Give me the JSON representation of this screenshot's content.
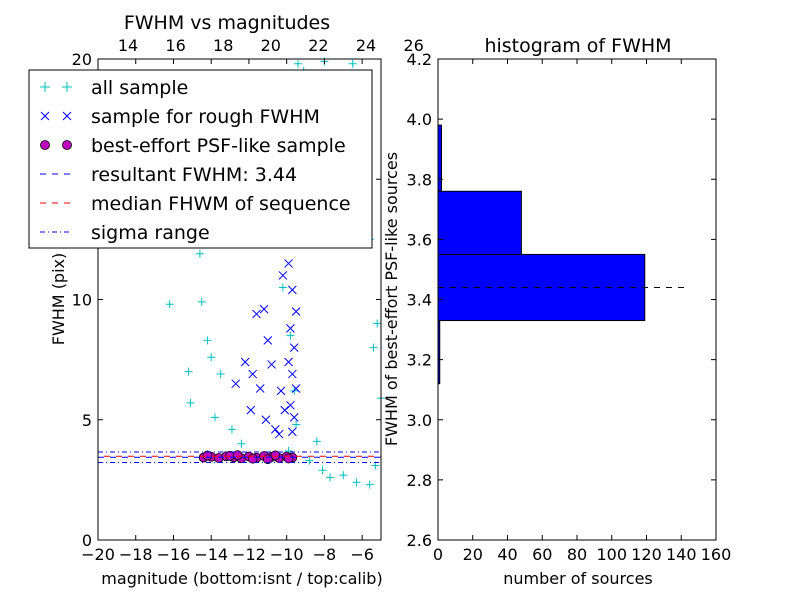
{
  "chart_data": [
    {
      "type": "scatter",
      "title": "FWHM vs magnitudes",
      "xlabel": "magnitude (bottom:isnt / top:calib)",
      "ylabel": "FWHM (pix)",
      "xlim": [
        -20,
        -5
      ],
      "ylim": [
        0,
        20
      ],
      "x_ticks": [
        "−20",
        "−18",
        "−16",
        "−14",
        "−12",
        "−10",
        "−8",
        "−6"
      ],
      "y_ticks": [
        "0",
        "5",
        "10",
        "15",
        "20"
      ],
      "top_axis": {
        "ticks": [
          "14",
          "16",
          "18",
          "20",
          "22",
          "24",
          "26"
        ]
      },
      "legend_position": "upper-left",
      "series": [
        {
          "name": "all sample",
          "marker": "+",
          "color": "#00bfbf",
          "points": [
            [
              -16.2,
              9.8
            ],
            [
              -15.2,
              7.0
            ],
            [
              -15.1,
              5.7
            ],
            [
              -14.5,
              9.9
            ],
            [
              -14.2,
              8.3
            ],
            [
              -14.0,
              7.6
            ],
            [
              -13.8,
              5.1
            ],
            [
              -13.5,
              6.9
            ],
            [
              -12.9,
              4.6
            ],
            [
              -12.4,
              4.0
            ],
            [
              -14.8,
              15.5
            ],
            [
              -14.6,
              11.9
            ],
            [
              -11.8,
              16.2
            ],
            [
              -10.9,
              12.5
            ],
            [
              -10.2,
              10.5
            ],
            [
              -10.5,
              13.8
            ],
            [
              -9.6,
              17.8
            ],
            [
              -9.4,
              19.8
            ],
            [
              -9.1,
              19.5
            ],
            [
              -8.5,
              16.5
            ],
            [
              -8.0,
              19.9
            ],
            [
              -7.5,
              19.0
            ],
            [
              -6.5,
              19.8
            ],
            [
              -7.0,
              13.0
            ],
            [
              -6.8,
              15.8
            ],
            [
              -6.0,
              13.5
            ],
            [
              -5.6,
              12.5
            ],
            [
              -5.2,
              9.0
            ],
            [
              -5.4,
              8.0
            ],
            [
              -5.0,
              5.9
            ],
            [
              -5.3,
              3.1
            ],
            [
              -9.8,
              8.5
            ],
            [
              -9.6,
              6.2
            ],
            [
              -9.5,
              4.8
            ],
            [
              -9.9,
              3.7
            ],
            [
              -8.8,
              3.3
            ],
            [
              -8.1,
              2.9
            ],
            [
              -7.7,
              2.6
            ],
            [
              -7.0,
              2.7
            ],
            [
              -6.3,
              2.4
            ],
            [
              -5.6,
              2.3
            ],
            [
              -8.4,
              4.1
            ]
          ]
        },
        {
          "name": "sample for rough FWHM",
          "marker": "x",
          "color": "#0000ff",
          "points": [
            [
              -11.8,
              15.8
            ],
            [
              -10.4,
              17.5
            ],
            [
              -10.6,
              14.0
            ],
            [
              -11.3,
              13.2
            ],
            [
              -11.6,
              9.4
            ],
            [
              -11.2,
              9.6
            ],
            [
              -12.2,
              7.4
            ],
            [
              -12.7,
              6.5
            ],
            [
              -11.8,
              6.9
            ],
            [
              -11.4,
              6.3
            ],
            [
              -11.9,
              5.4
            ],
            [
              -11.1,
              5.0
            ],
            [
              -10.6,
              4.6
            ],
            [
              -10.8,
              7.3
            ],
            [
              -11.0,
              8.3
            ],
            [
              -10.3,
              6.2
            ],
            [
              -10.1,
              5.4
            ],
            [
              -10.4,
              4.4
            ],
            [
              -9.9,
              16.3
            ],
            [
              -9.8,
              14.8
            ],
            [
              -9.6,
              12.8
            ],
            [
              -9.9,
              11.5
            ],
            [
              -9.7,
              10.4
            ],
            [
              -9.5,
              9.5
            ],
            [
              -9.8,
              8.8
            ],
            [
              -9.6,
              8.0
            ],
            [
              -9.9,
              7.4
            ],
            [
              -9.7,
              6.9
            ],
            [
              -9.5,
              6.3
            ],
            [
              -9.8,
              5.6
            ],
            [
              -9.6,
              5.1
            ],
            [
              -9.7,
              4.5
            ],
            [
              -10.2,
              11.0
            ],
            [
              -10.9,
              12.5
            ]
          ]
        },
        {
          "name": "best-effort PSF-like sample",
          "marker": "o",
          "color": "#bf00bf",
          "points": [
            [
              -14.4,
              3.43
            ],
            [
              -14.0,
              3.46
            ],
            [
              -13.6,
              3.41
            ],
            [
              -13.2,
              3.48
            ],
            [
              -12.8,
              3.44
            ],
            [
              -12.4,
              3.4
            ],
            [
              -12.0,
              3.47
            ],
            [
              -11.6,
              3.42
            ],
            [
              -11.2,
              3.49
            ],
            [
              -10.8,
              3.45
            ],
            [
              -10.4,
              3.41
            ],
            [
              -10.0,
              3.47
            ],
            [
              -9.7,
              3.43
            ],
            [
              -13.0,
              3.5
            ],
            [
              -11.8,
              3.38
            ],
            [
              -10.6,
              3.52
            ],
            [
              -9.9,
              3.39
            ],
            [
              -14.2,
              3.51
            ],
            [
              -12.6,
              3.53
            ],
            [
              -11.0,
              3.36
            ]
          ]
        }
      ],
      "lines": [
        {
          "name": "resultant FWHM: 3.44",
          "y": 3.44,
          "color": "#0000ff",
          "style": "dashed"
        },
        {
          "name": "median FHWM of sequence",
          "y": 3.44,
          "color": "#ff0000",
          "style": "dashed"
        },
        {
          "name": "sigma range",
          "y_values": [
            3.22,
            3.66
          ],
          "color": "#0000ff",
          "style": "dashdot"
        }
      ]
    },
    {
      "type": "bar",
      "orientation": "horizontal",
      "title": "histogram of FWHM",
      "xlabel": "number of sources",
      "ylabel": "FWHM of best-effort PSF-like sources",
      "xlim": [
        0,
        160
      ],
      "ylim": [
        2.6,
        4.2
      ],
      "x_ticks": [
        "0",
        "20",
        "40",
        "60",
        "80",
        "100",
        "120",
        "140",
        "160"
      ],
      "y_ticks": [
        "2.6",
        "2.8",
        "3.0",
        "3.2",
        "3.4",
        "3.6",
        "3.8",
        "4.0",
        "4.2"
      ],
      "bar_color": "#0000ff",
      "bins": [
        {
          "from": 3.12,
          "to": 3.33,
          "count": 1
        },
        {
          "from": 3.33,
          "to": 3.55,
          "count": 119
        },
        {
          "from": 3.55,
          "to": 3.76,
          "count": 48
        },
        {
          "from": 3.76,
          "to": 3.98,
          "count": 2
        }
      ],
      "reference_line": {
        "y": 3.44,
        "x_extent": [
          0,
          143
        ],
        "style": "dashed",
        "color": "#000000"
      }
    }
  ]
}
